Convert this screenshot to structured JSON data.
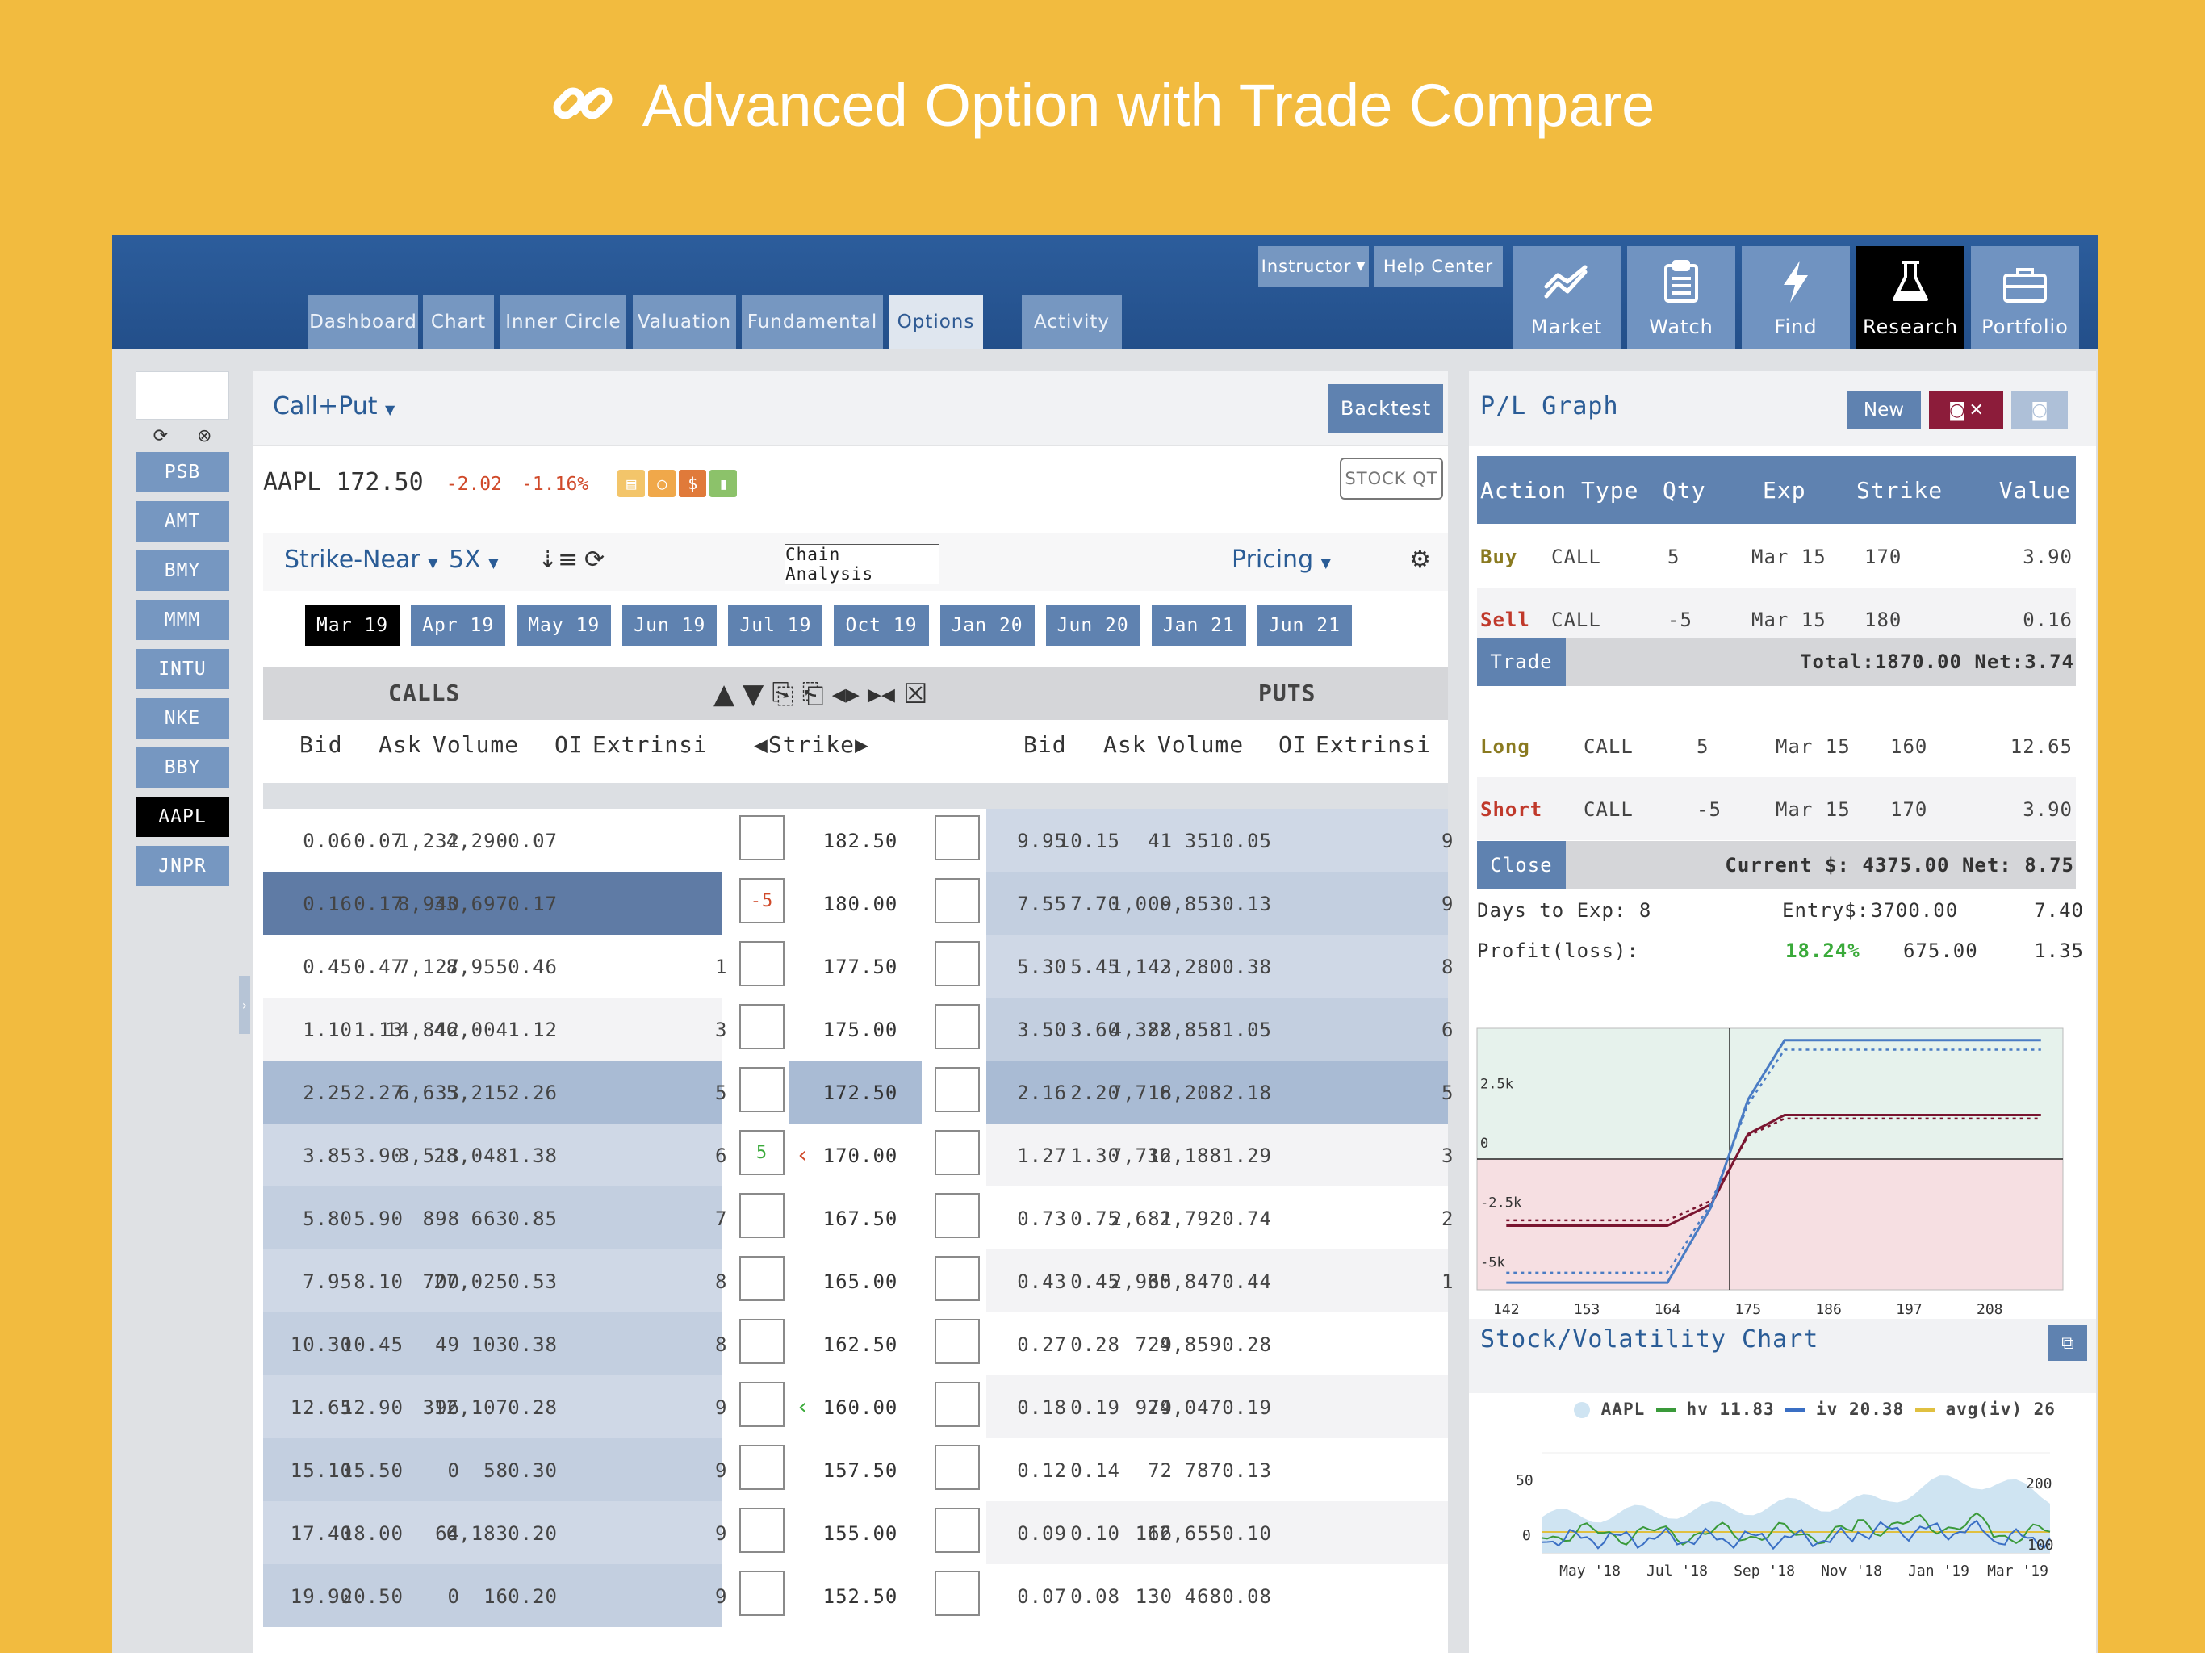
{
  "hero": {
    "title": "Advanced Option with Trade Compare",
    "icon": "link-icon"
  },
  "topbar": {
    "tabs": [
      "Dashboard",
      "Chart",
      "Inner Circle",
      "Valuation",
      "Fundamental",
      "Options",
      "Activity"
    ],
    "active_tab": "Options",
    "instructor_label": "Instructor",
    "help_label": "Help Center",
    "nav": [
      {
        "label": "Market",
        "icon": "trend-icon"
      },
      {
        "label": "Watch",
        "icon": "clipboard-icon"
      },
      {
        "label": "Find",
        "icon": "bolt-icon"
      },
      {
        "label": "Research",
        "icon": "flask-icon"
      },
      {
        "label": "Portfolio",
        "icon": "briefcase-icon"
      }
    ],
    "active_nav": "Research"
  },
  "symbols": {
    "items": [
      "PSB",
      "AMT",
      "BMY",
      "MMM",
      "INTU",
      "NKE",
      "BBY",
      "AAPL",
      "JNPR"
    ],
    "active": "AAPL"
  },
  "options": {
    "mode": "Call+Put",
    "backtest_label": "Backtest",
    "ticker": "AAPL",
    "price": "172.50",
    "change": "-2.02",
    "change_pct": "-1.16%",
    "stock_qt_label": "STOCK QT",
    "strike_filter": "Strike-Near",
    "multiplier": "5X",
    "chain_analysis_label": "Chain Analysis",
    "pricing_label": "Pricing",
    "expirations": [
      "Mar 19",
      "Apr 19",
      "May 19",
      "Jun 19",
      "Jul 19",
      "Oct 19",
      "Jan 20",
      "Jun 20",
      "Jan 21",
      "Jun 21"
    ],
    "active_expiration": "Mar 19",
    "calls_label": "CALLS",
    "puts_label": "PUTS",
    "strike_label": "Strike",
    "call_columns": [
      "Bid",
      "Ask",
      "Volume",
      "OI",
      "Extrinsi"
    ],
    "put_columns": [
      "Bid",
      "Ask",
      "Volume",
      "OI",
      "Extrinsi"
    ],
    "rows": [
      {
        "strike": "182.50",
        "call": [
          "0.06",
          "0.07",
          "1,232",
          "4,290",
          "0.07"
        ],
        "put": [
          "9.95",
          "10.15",
          "41",
          "351",
          "0.05"
        ],
        "call_cut": "",
        "put_cut": "9",
        "left_qty": "",
        "marker": ""
      },
      {
        "strike": "180.00",
        "call": [
          "0.16",
          "0.17",
          "8,940",
          "33,697",
          "0.17"
        ],
        "put": [
          "7.55",
          "7.70",
          "1,009",
          "6,853",
          "0.13"
        ],
        "call_cut": "",
        "put_cut": "9",
        "left_qty": "-5",
        "marker": ""
      },
      {
        "strike": "177.50",
        "call": [
          "0.45",
          "0.47",
          "7,127",
          "8,955",
          "0.46"
        ],
        "put": [
          "5.30",
          "5.45",
          "1,143",
          "2,280",
          "0.38"
        ],
        "call_cut": "1",
        "put_cut": "8",
        "left_qty": "",
        "marker": ""
      },
      {
        "strike": "175.00",
        "call": [
          "1.10",
          "1.13",
          "14,842",
          "46,004",
          "1.12"
        ],
        "put": [
          "3.50",
          "3.60",
          "4,388",
          "22,858",
          "1.05"
        ],
        "call_cut": "3",
        "put_cut": "6",
        "left_qty": "",
        "marker": ""
      },
      {
        "strike": "172.50",
        "call": [
          "2.25",
          "2.27",
          "6,633",
          "5,215",
          "2.26"
        ],
        "put": [
          "2.16",
          "2.20",
          "7,718",
          "6,208",
          "2.18"
        ],
        "call_cut": "5",
        "put_cut": "5",
        "left_qty": "",
        "marker": ""
      },
      {
        "strike": "170.00",
        "call": [
          "3.85",
          "3.90",
          "3,513",
          "28,048",
          "1.38"
        ],
        "put": [
          "1.27",
          "1.30",
          "7,712",
          "36,188",
          "1.29"
        ],
        "call_cut": "6",
        "put_cut": "3",
        "left_qty": "5",
        "marker": "short"
      },
      {
        "strike": "167.50",
        "call": [
          "5.80",
          "5.90",
          "898",
          "663",
          "0.85"
        ],
        "put": [
          "0.73",
          "0.75",
          "2,681",
          "2,792",
          "0.74"
        ],
        "call_cut": "7",
        "put_cut": "2",
        "left_qty": "",
        "marker": ""
      },
      {
        "strike": "165.00",
        "call": [
          "7.95",
          "8.10",
          "700",
          "27,025",
          "0.53"
        ],
        "put": [
          "0.43",
          "0.45",
          "2,965",
          "30,847",
          "0.44"
        ],
        "call_cut": "8",
        "put_cut": "1",
        "left_qty": "",
        "marker": ""
      },
      {
        "strike": "162.50",
        "call": [
          "10.30",
          "10.45",
          "49",
          "103",
          "0.38"
        ],
        "put": [
          "0.27",
          "0.28",
          "729",
          "4,859",
          "0.28"
        ],
        "call_cut": "8",
        "put_cut": "",
        "left_qty": "",
        "marker": ""
      },
      {
        "strike": "160.00",
        "call": [
          "12.65",
          "12.90",
          "396",
          "12,107",
          "0.28"
        ],
        "put": [
          "0.18",
          "0.19",
          "979",
          "24,047",
          "0.19"
        ],
        "call_cut": "9",
        "put_cut": "",
        "left_qty": "",
        "marker": "long"
      },
      {
        "strike": "157.50",
        "call": [
          "15.10",
          "15.50",
          "0",
          "58",
          "0.30"
        ],
        "put": [
          "0.12",
          "0.14",
          "72",
          "787",
          "0.13"
        ],
        "call_cut": "9",
        "put_cut": "",
        "left_qty": "",
        "marker": ""
      },
      {
        "strike": "155.00",
        "call": [
          "17.40",
          "18.00",
          "64",
          "6,183",
          "0.20"
        ],
        "put": [
          "0.09",
          "0.10",
          "166",
          "12,655",
          "0.10"
        ],
        "call_cut": "9",
        "put_cut": "",
        "left_qty": "",
        "marker": ""
      },
      {
        "strike": "152.50",
        "call": [
          "19.90",
          "20.50",
          "0",
          "16",
          "0.20"
        ],
        "put": [
          "0.07",
          "0.08",
          "130",
          "468",
          "0.08"
        ],
        "call_cut": "9",
        "put_cut": "",
        "left_qty": "",
        "marker": ""
      }
    ]
  },
  "pl": {
    "title": "P/L Graph",
    "new_label": "New",
    "columns": [
      "Action Type",
      "Qty",
      "Exp",
      "Strike",
      "Value"
    ],
    "legs": [
      {
        "action": "Buy",
        "type": "CALL",
        "qty": "5",
        "exp": "Mar 15",
        "strike": "170",
        "value": "3.90",
        "color": "#8a7a20"
      },
      {
        "action": "Sell",
        "type": "CALL",
        "qty": "-5",
        "exp": "Mar 15",
        "strike": "180",
        "value": "0.16",
        "color": "#c0392b"
      }
    ],
    "trade_label": "Trade",
    "trade_total": "Total:1870.00  Net:3.74",
    "trade_legs": [
      {
        "action": "Long",
        "type": "CALL",
        "qty": "5",
        "exp": "Mar 15",
        "strike": "160",
        "value": "12.65",
        "color": "#8a7a20"
      },
      {
        "action": "Short",
        "type": "CALL",
        "qty": "-5",
        "exp": "Mar 15",
        "strike": "170",
        "value": "3.90",
        "color": "#c0392b"
      }
    ],
    "close_label": "Close",
    "close_total": "Current $:  4375.00  Net: 8.75",
    "days_to_exp": "Days to Exp:  8",
    "entry_label": "Entry$:",
    "entry_value": "3700.00",
    "entry_net": "7.40",
    "profit_label": "Profit(loss):",
    "profit_pct": "18.24%",
    "profit_value": "675.00",
    "profit_net": "1.35",
    "y_ticks": [
      "2.5k",
      "0",
      "-2.5k",
      "-5k"
    ],
    "x_ticks": [
      "142",
      "153",
      "164",
      "175",
      "186",
      "197",
      "208"
    ]
  },
  "chart_data": {
    "type": "line",
    "x": [
      142,
      153,
      164,
      170,
      175,
      180,
      186,
      197,
      208,
      215
    ],
    "series": [
      {
        "values": [
          -2800,
          -2800,
          -2800,
          -1900,
          1050,
          1850,
          1850,
          1850,
          1850,
          1850
        ]
      },
      {
        "values": [
          -5200,
          -5200,
          -5200,
          -2000,
          2500,
          5000,
          5000,
          5000,
          5000,
          5000
        ]
      }
    ],
    "ylim": [
      -5500,
      5500
    ],
    "xlim": [
      138,
      218
    ],
    "stock_price": 172.5
  },
  "svc": {
    "title": "Stock/Volatility Chart",
    "legend": [
      {
        "label": "AAPL",
        "color": "#cfe4f2"
      },
      {
        "label": "hv 11.83",
        "color": "#3a9a3a"
      },
      {
        "label": "iv 20.38",
        "color": "#3a6fc4"
      },
      {
        "label": "avg(iv) 26",
        "color": "#e0c040"
      }
    ],
    "left_ticks": [
      "50",
      "0"
    ],
    "right_ticks": [
      "200",
      "100"
    ],
    "x_ticks": [
      "May '18",
      "Jul '18",
      "Sep '18",
      "Nov '18",
      "Jan '19",
      "Mar '19"
    ]
  }
}
